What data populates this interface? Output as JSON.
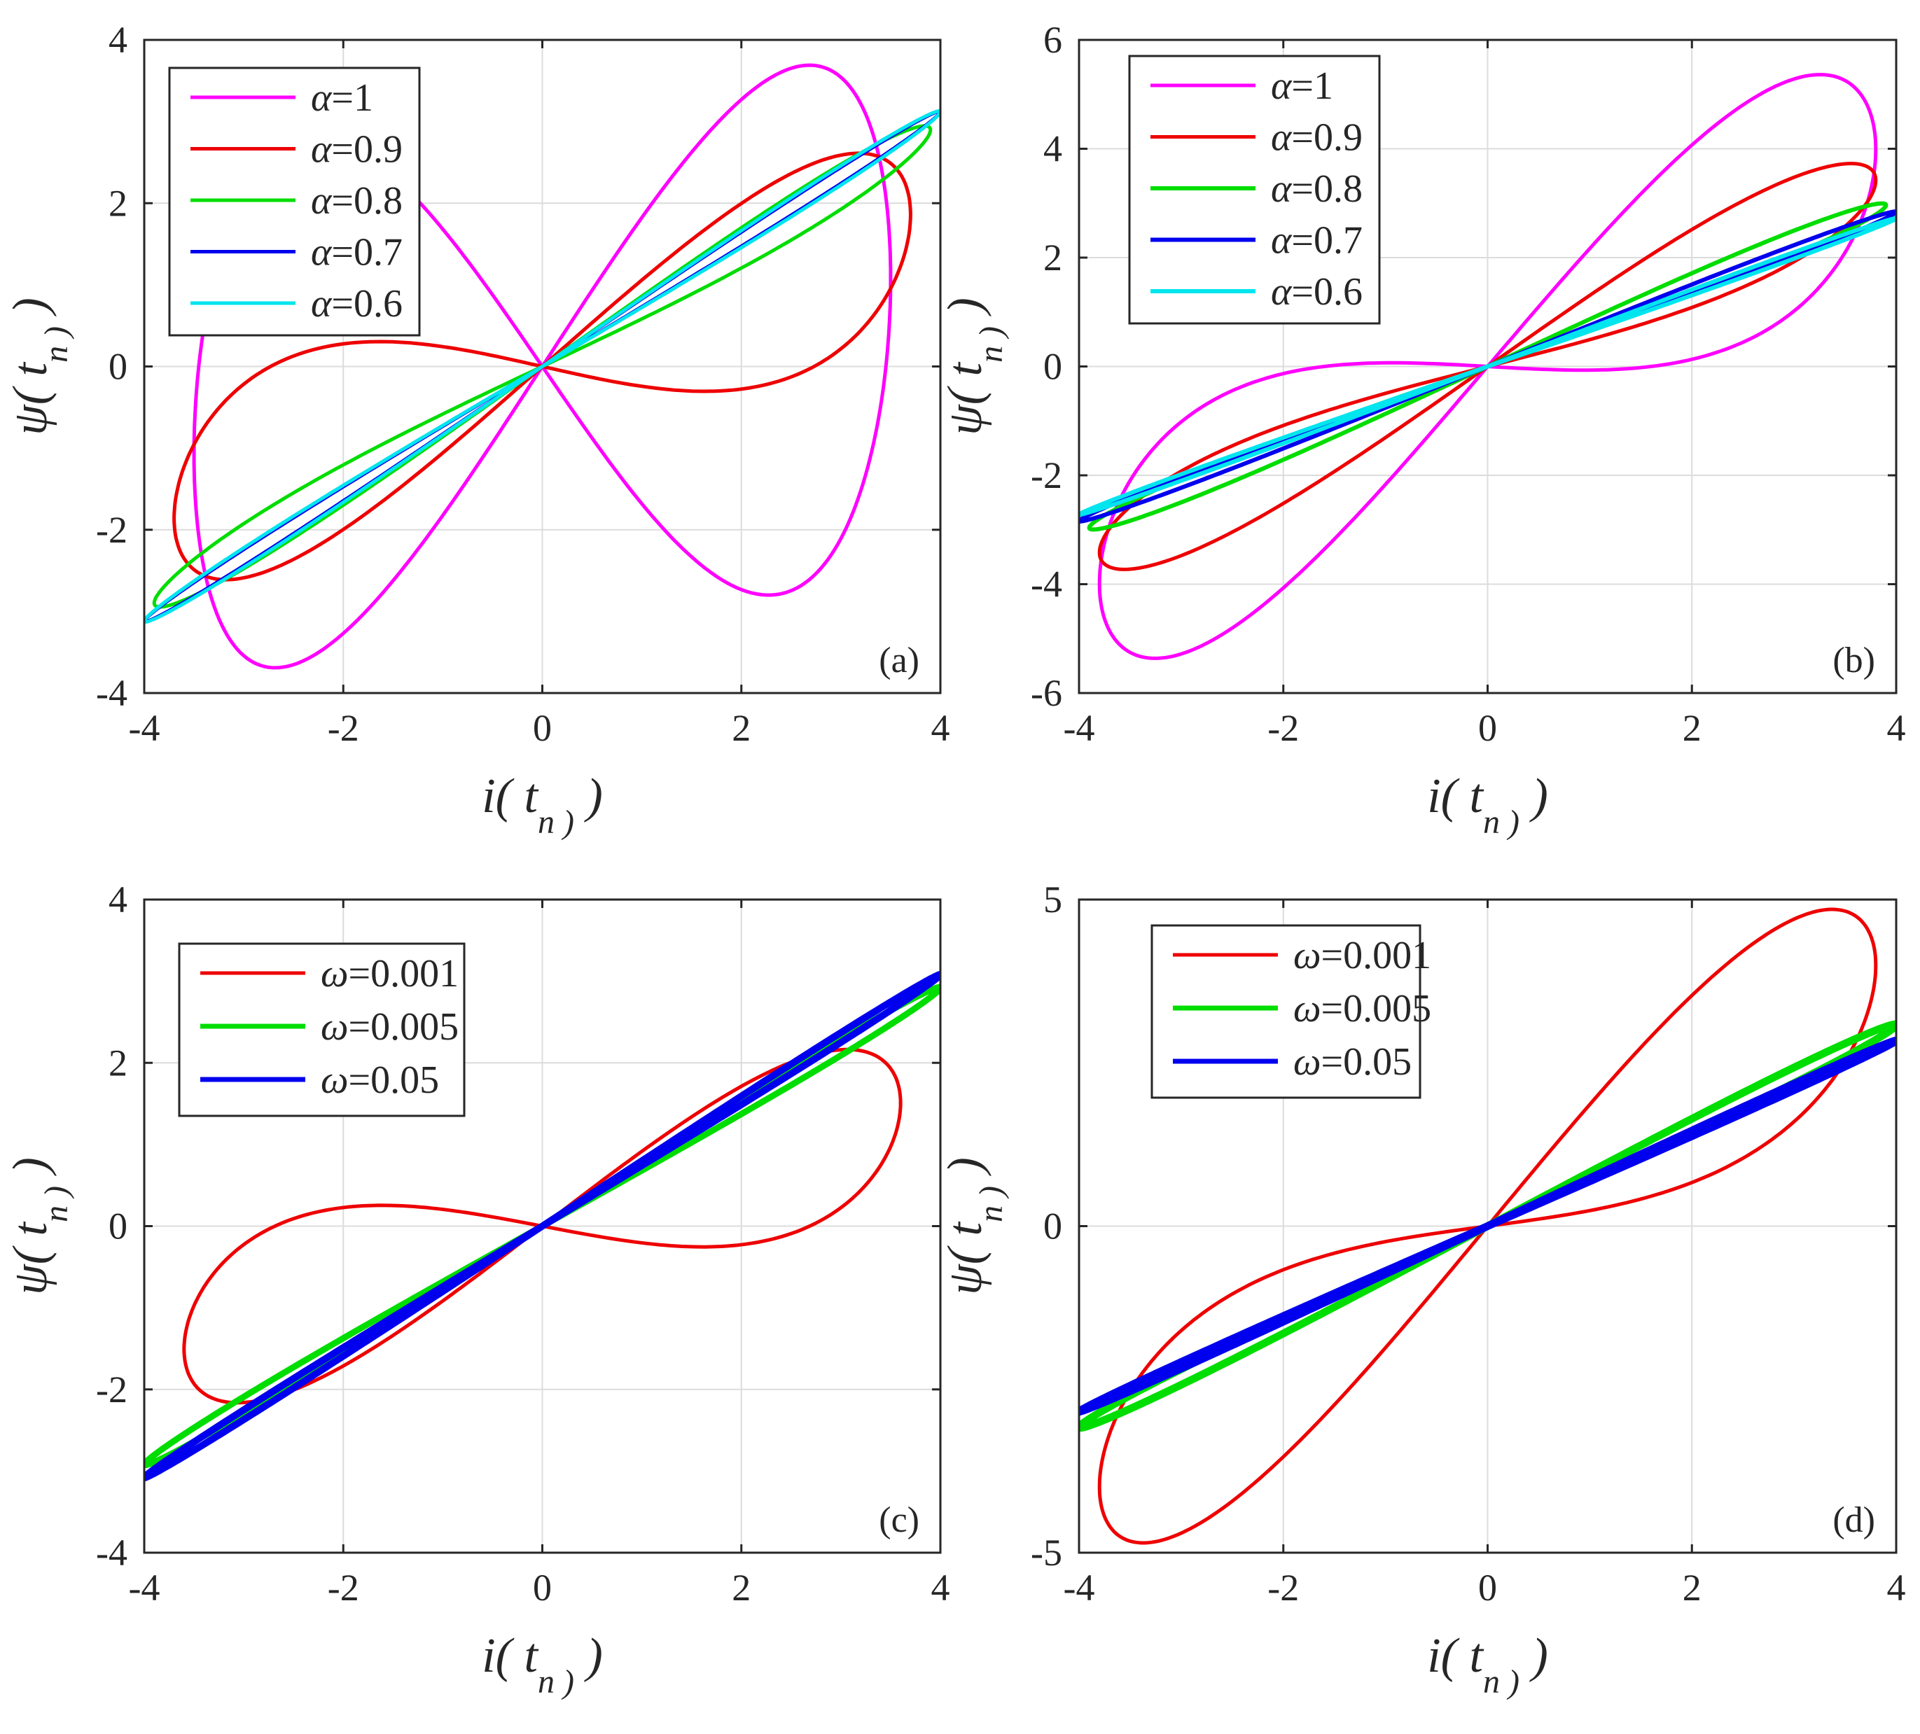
{
  "chart_data": [
    {
      "panel": "(a)",
      "type": "line",
      "subtype": "parametric hysteresis loops (psi vs i)",
      "xlabel": "i( t_n )",
      "ylabel": "ψ( t_n )",
      "xlim": [
        -4,
        4
      ],
      "ylim": [
        -4,
        4
      ],
      "xticks": [
        "-4",
        "-2",
        "0",
        "2",
        "4"
      ],
      "yticks": [
        "-4",
        "-2",
        "0",
        "2",
        "4"
      ],
      "grid": true,
      "legend_position": "top-left",
      "series": [
        {
          "symbol": "α",
          "value": "=1",
          "color": "#ff00ff",
          "width": 5,
          "slope": 0.05,
          "cubic": 0.021,
          "lobe": 3.2,
          "i_peak": 3.5
        },
        {
          "symbol": "α",
          "value": "=0.9",
          "color": "#ee0000",
          "width": 5,
          "slope": 0.4,
          "cubic": 0.0075,
          "lobe": 1.25,
          "i_peak": 3.7
        },
        {
          "symbol": "α",
          "value": "=0.8",
          "color": "#00dd00",
          "width": 5,
          "slope": 0.72,
          "cubic": 0.0015,
          "lobe": 0.28,
          "i_peak": 3.9
        },
        {
          "symbol": "α",
          "value": "=0.7",
          "color": "#0000ee",
          "width": 5,
          "slope": 0.78,
          "cubic": 0.0,
          "lobe": 0.1,
          "i_peak": 4.0
        },
        {
          "symbol": "α",
          "value": "=0.6",
          "color": "#00e5ee",
          "width": 5,
          "slope": 0.78,
          "cubic": 0.0,
          "lobe": 0.12,
          "i_peak": 4.0
        }
      ]
    },
    {
      "panel": "(b)",
      "type": "line",
      "subtype": "parametric hysteresis loops (psi vs i)",
      "xlabel": "i( t_n )",
      "ylabel": "ψ( t_n )",
      "xlim": [
        -4,
        4
      ],
      "ylim": [
        -6,
        6
      ],
      "xticks": [
        "-4",
        "-2",
        "0",
        "2",
        "4"
      ],
      "yticks": [
        "-6",
        "-4",
        "-2",
        "0",
        "2",
        "4",
        "6"
      ],
      "grid": true,
      "legend_position": "top-left",
      "series": [
        {
          "symbol": "α",
          "value": "=1",
          "color": "#ff00ff",
          "width": 5,
          "slope": 1.05,
          "cubic": 0.0,
          "lobe": 2.2,
          "i_peak": 3.8
        },
        {
          "symbol": "α",
          "value": "=0.9",
          "color": "#ee0000",
          "width": 5,
          "slope": 0.9,
          "cubic": 0.0,
          "lobe": 0.8,
          "i_peak": 3.8
        },
        {
          "symbol": "α",
          "value": "=0.8",
          "color": "#00dd00",
          "width": 6,
          "slope": 0.76,
          "cubic": 0.0,
          "lobe": 0.22,
          "i_peak": 3.9
        },
        {
          "symbol": "α",
          "value": "=0.7",
          "color": "#0000ee",
          "width": 6,
          "slope": 0.71,
          "cubic": 0.0,
          "lobe": 0.1,
          "i_peak": 4.0
        },
        {
          "symbol": "α",
          "value": "=0.6",
          "color": "#00e5ee",
          "width": 6,
          "slope": 0.68,
          "cubic": 0.0,
          "lobe": 0.06,
          "i_peak": 4.0
        }
      ]
    },
    {
      "panel": "(c)",
      "type": "line",
      "subtype": "parametric hysteresis loops (psi vs i)",
      "xlabel": "i( t_n )",
      "ylabel": "ψ( t_n )",
      "xlim": [
        -4,
        4
      ],
      "ylim": [
        -4,
        4
      ],
      "xticks": [
        "-4",
        "-2",
        "0",
        "2",
        "4"
      ],
      "yticks": [
        "-4",
        "-2",
        "0",
        "2",
        "4"
      ],
      "grid": true,
      "legend_position": "top-left",
      "series": [
        {
          "symbol": "ω",
          "value": "=0.001",
          "color": "#ee0000",
          "width": 5,
          "slope": 0.35,
          "cubic": 0.0053,
          "lobe": 1.05,
          "i_peak": 3.6
        },
        {
          "symbol": "ω",
          "value": "=0.005",
          "color": "#00dd00",
          "width": 9,
          "slope": 0.73,
          "cubic": 0.0,
          "lobe": 0.1,
          "i_peak": 4.0
        },
        {
          "symbol": "ω",
          "value": "=0.05",
          "color": "#0000ee",
          "width": 10,
          "slope": 0.77,
          "cubic": 0.0,
          "lobe": 0.06,
          "i_peak": 4.0
        }
      ]
    },
    {
      "panel": "(d)",
      "type": "line",
      "subtype": "parametric hysteresis loops (psi vs i)",
      "xlabel": "i( t_n )",
      "ylabel": "ψ( t_n )",
      "xlim": [
        -4,
        4
      ],
      "ylim": [
        -5,
        5
      ],
      "xticks": [
        "-4",
        "-2",
        "0",
        "2",
        "4"
      ],
      "yticks": [
        "-5",
        "0",
        "5"
      ],
      "grid": true,
      "legend_position": "top-left",
      "series": [
        {
          "symbol": "ω",
          "value": "=0.001",
          "color": "#ee0000",
          "width": 5,
          "slope": 1.05,
          "cubic": 0.0,
          "lobe": 1.6,
          "i_peak": 3.8
        },
        {
          "symbol": "ω",
          "value": "=0.005",
          "color": "#00dd00",
          "width": 11,
          "slope": 0.77,
          "cubic": 0.0,
          "lobe": 0.12,
          "i_peak": 4.0
        },
        {
          "symbol": "ω",
          "value": "=0.05",
          "color": "#0000ee",
          "width": 11,
          "slope": 0.71,
          "cubic": 0.0,
          "lobe": 0.05,
          "i_peak": 4.0
        }
      ]
    }
  ]
}
